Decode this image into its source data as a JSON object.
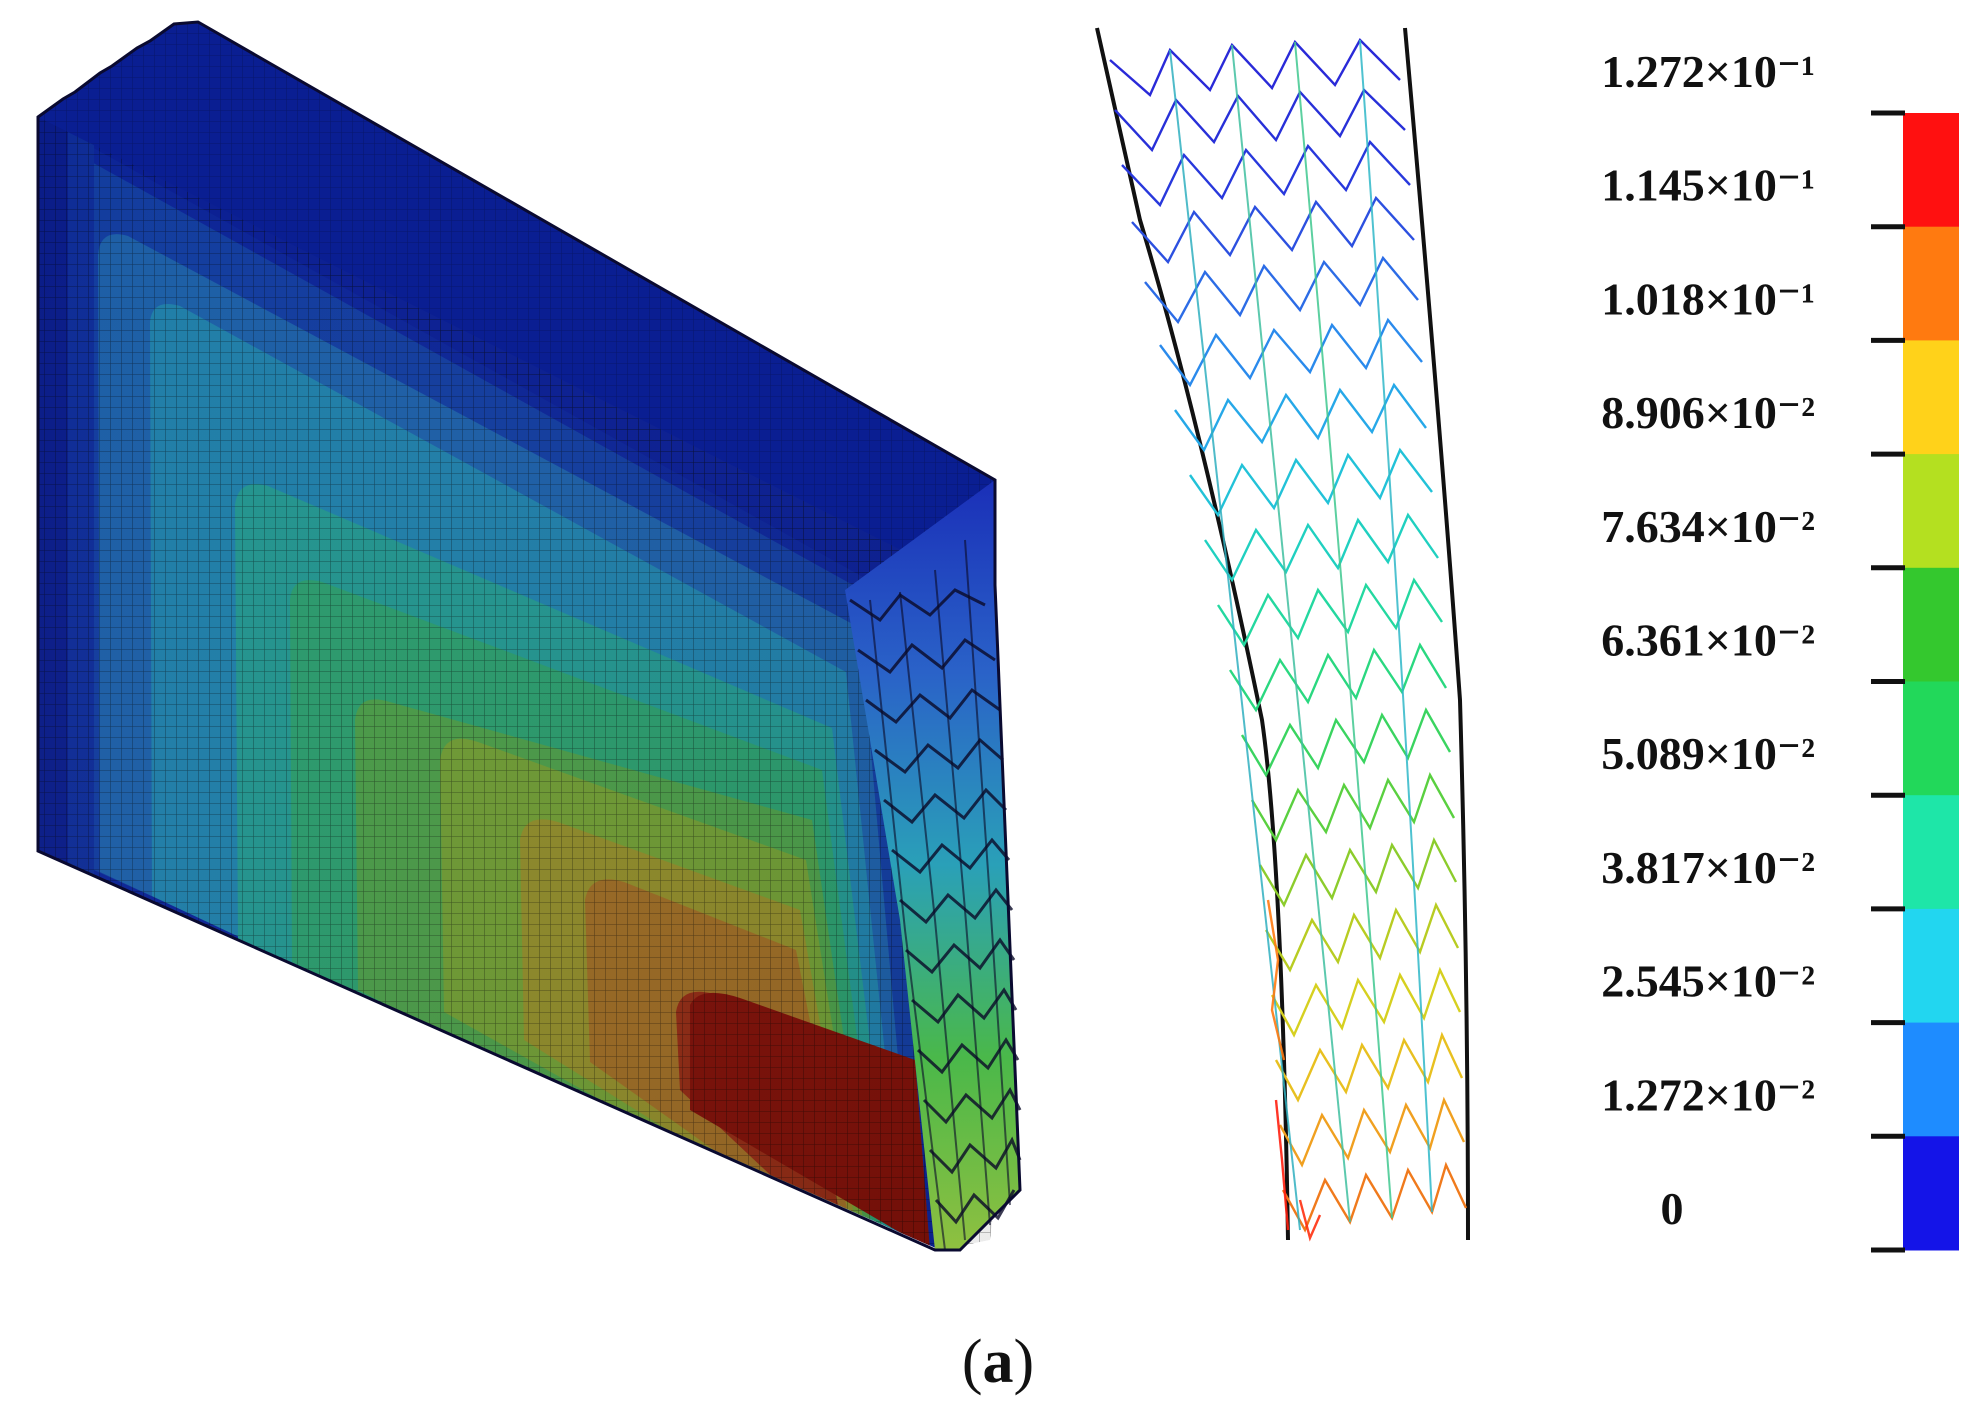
{
  "legend": {
    "labels": [
      "1.272×10⁻¹",
      "1.145×10⁻¹",
      "1.018×10⁻¹",
      "8.906×10⁻²",
      "7.634×10⁻²",
      "6.361×10⁻²",
      "5.089×10⁻²",
      "3.817×10⁻²",
      "2.545×10⁻²",
      "1.272×10⁻²",
      "0"
    ],
    "colors": [
      "#ff1010",
      "#ff7a10",
      "#ffd21a",
      "#b4e020",
      "#34c82e",
      "#22d85a",
      "#1ee6a8",
      "#22d6f0",
      "#1e8cff",
      "#1414e8"
    ]
  },
  "caption": {
    "open": "(",
    "letter": "a",
    "close": ")"
  }
}
